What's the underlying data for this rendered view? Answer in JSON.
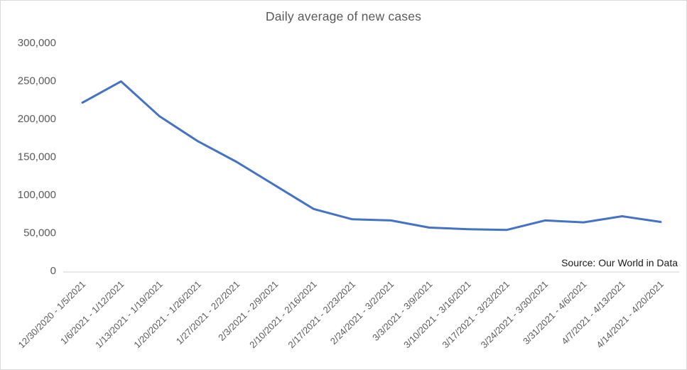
{
  "window": {
    "background_color": "#ffffff",
    "border_color": "#d9d9d9"
  },
  "chart_data": {
    "type": "line",
    "title": "Daily average of new cases",
    "categories": [
      "12/30/2020 - 1/5/2021",
      "1/6/2021 - 1/12/2021",
      "1/13/2021 - 1/19/2021",
      "1/20/2021 - 1/26/2021",
      "1/27/2021 - 2/2/2021",
      "2/3/2021 - 2/9/2021",
      "2/10/2021 - 2/16/2021",
      "2/17/2021 - 2/23/2021",
      "2/24/2021 - 3/2/2021",
      "3/3/2021 - 3/9/2021",
      "3/10/2021 - 3/16/2021",
      "3/17/2021 - 3/23/2021",
      "3/24/2021 - 3/30/2021",
      "3/31/2021 - 4/6/2021",
      "4/7/2021 - 4/13/2021",
      "4/14/2021 - 4/20/2021"
    ],
    "values": [
      221000,
      249000,
      203000,
      170000,
      143000,
      112000,
      81000,
      67500,
      66000,
      56500,
      54500,
      53500,
      66000,
      63500,
      71500,
      64000
    ],
    "xlabel": "",
    "ylabel": "",
    "ylim": [
      0,
      300000
    ],
    "y_ticks": [
      0,
      50000,
      100000,
      150000,
      200000,
      250000,
      300000
    ],
    "y_tick_labels": [
      "0",
      "50,000",
      "100,000",
      "150,000",
      "200,000",
      "250,000",
      "300,000"
    ],
    "x_tick_rotation_deg": 45,
    "grid": false,
    "legend": false,
    "line_color": "#4472C4",
    "axis_line_color": "#d9d9d9",
    "tick_text_color": "#595959",
    "annotation": {
      "text": "Source: Our World in Data",
      "color": "#1a1a1a"
    }
  }
}
